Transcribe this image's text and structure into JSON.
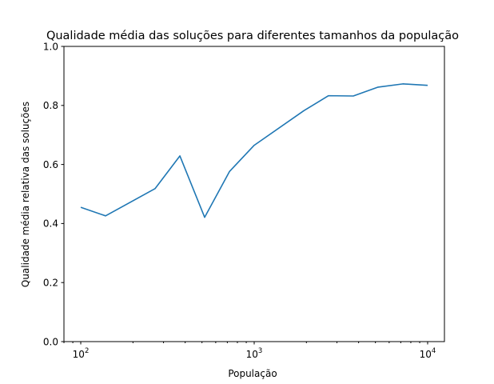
{
  "chart_data": {
    "type": "line",
    "title": "Qualidade média das soluções para diferentes tamanhos da população",
    "xlabel": "População",
    "ylabel": "Qualidade média relativa das soluções",
    "xscale": "log",
    "xlim": [
      80,
      12500
    ],
    "ylim": [
      0.0,
      1.0
    ],
    "grid": false,
    "x": [
      100,
      139,
      268,
      373,
      518,
      720,
      1000,
      1931,
      2683,
      3727,
      5179,
      7197,
      10000
    ],
    "y": [
      0.455,
      0.426,
      0.518,
      0.629,
      0.421,
      0.576,
      0.665,
      0.782,
      0.833,
      0.832,
      0.862,
      0.873,
      0.868
    ],
    "y_ticks": [
      {
        "value": 0.0,
        "label": "0.0"
      },
      {
        "value": 0.2,
        "label": "0.2"
      },
      {
        "value": 0.4,
        "label": "0.4"
      },
      {
        "value": 0.6,
        "label": "0.6"
      },
      {
        "value": 0.8,
        "label": "0.8"
      },
      {
        "value": 1.0,
        "label": "1.0"
      }
    ],
    "x_ticks": [
      {
        "value": 100,
        "base": "10",
        "exp": "2"
      },
      {
        "value": 1000,
        "base": "10",
        "exp": "3"
      },
      {
        "value": 10000,
        "base": "10",
        "exp": "4"
      }
    ],
    "line_color": "#1f77b4"
  }
}
